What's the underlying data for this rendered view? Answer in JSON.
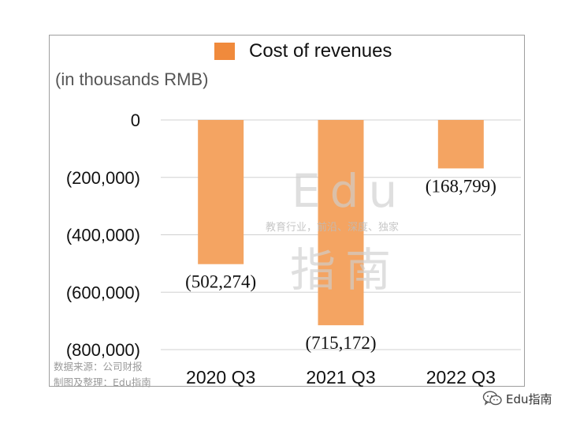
{
  "chart_data": {
    "type": "bar",
    "title": "",
    "legend": [
      "Cost of revenues"
    ],
    "legend_position": "top",
    "unit_label": "(in thousands RMB)",
    "categories": [
      "2020 Q3",
      "2021 Q3",
      "2022 Q3"
    ],
    "series": [
      {
        "name": "Cost of revenues",
        "values": [
          -502274,
          -715172,
          -168799
        ]
      }
    ],
    "data_labels": [
      "(502,274)",
      "(715,172)",
      "(168,799)"
    ],
    "yticks": [
      0,
      -200000,
      -400000,
      -600000,
      -800000
    ],
    "ytick_labels": [
      "0",
      "(200,000)",
      "(400,000)",
      "(600,000)",
      "(800,000)"
    ],
    "ylim": [
      -800000,
      0
    ],
    "grid": true,
    "colors": {
      "bar": "#f4a462",
      "legend": "#f08a3c",
      "grid": "#d0d0d0",
      "frame": "#9e9e9e"
    }
  },
  "watermark": {
    "big_top": "Edu",
    "tagline": "教育行业，前沿、深度、独家",
    "big_bottom": "指南"
  },
  "source_note": {
    "line1": "数据来源：公司财报",
    "line2": "制图及整理：Edu指南"
  },
  "badge": {
    "label": "Edu指南",
    "icon": "wechat-icon"
  }
}
